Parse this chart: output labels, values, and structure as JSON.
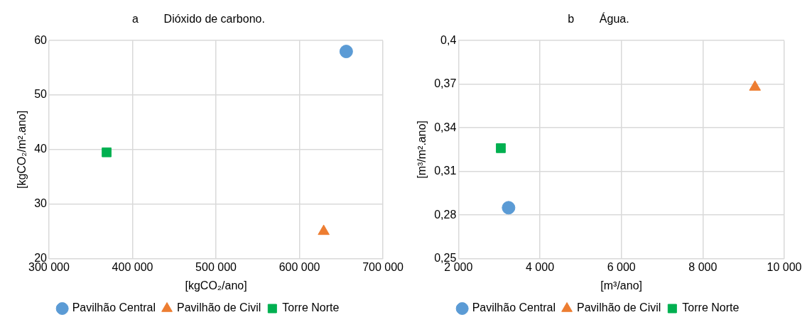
{
  "chart_data": [
    {
      "type": "scatter",
      "title": "a        Dióxido de carbono.",
      "xlabel": "[kgCO₂/ano]",
      "ylabel": "[kgCO₂/m².ano]",
      "series": [
        {
          "name": "Pavilhão Central",
          "color": "#5b9bd5",
          "marker": "circle",
          "x": [
            656000
          ],
          "values": [
            58
          ]
        },
        {
          "name": "Pavilhão de Civil",
          "color": "#ed7d31",
          "marker": "triangle",
          "x": [
            629000
          ],
          "values": [
            25
          ]
        },
        {
          "name": "Torre Norte",
          "color": "#00b050",
          "marker": "square",
          "x": [
            369000
          ],
          "values": [
            39.5
          ]
        }
      ],
      "xlim": [
        300000,
        700000
      ],
      "xticks": [
        {
          "value": 300000,
          "label": "300 000"
        },
        {
          "value": 400000,
          "label": "400 000"
        },
        {
          "value": 500000,
          "label": "500 000"
        },
        {
          "value": 600000,
          "label": "600 000"
        },
        {
          "value": 700000,
          "label": "700 000"
        }
      ],
      "ylim": [
        20,
        60
      ],
      "yticks": [
        20,
        30,
        40,
        50,
        60
      ],
      "grid": true,
      "legend": "bottom"
    },
    {
      "type": "scatter",
      "title": "b        Água.",
      "xlabel": "[m³/ano]",
      "ylabel": "[m³/m².ano]",
      "series": [
        {
          "name": "Pavilhão Central",
          "color": "#5b9bd5",
          "marker": "circle",
          "x": [
            3230
          ],
          "values": [
            0.285
          ]
        },
        {
          "name": "Pavilhão de Civil",
          "color": "#ed7d31",
          "marker": "triangle",
          "x": [
            9280
          ],
          "values": [
            0.368
          ]
        },
        {
          "name": "Torre Norte",
          "color": "#00b050",
          "marker": "square",
          "x": [
            3040
          ],
          "values": [
            0.326
          ]
        }
      ],
      "xlim": [
        2000,
        10000
      ],
      "xticks": [
        {
          "value": 2000,
          "label": "2 000"
        },
        {
          "value": 4000,
          "label": "4 000"
        },
        {
          "value": 6000,
          "label": "6 000"
        },
        {
          "value": 8000,
          "label": "8 000"
        },
        {
          "value": 10000,
          "label": "10 000"
        }
      ],
      "ylim": [
        0.25,
        0.4
      ],
      "yticks": [
        {
          "value": 0.25,
          "label": "0,25"
        },
        {
          "value": 0.28,
          "label": "0,28"
        },
        {
          "value": 0.31,
          "label": "0,31"
        },
        {
          "value": 0.34,
          "label": "0,34"
        },
        {
          "value": 0.37,
          "label": "0,37"
        },
        {
          "value": 0.4,
          "label": "0,4"
        }
      ],
      "grid": true,
      "legend": "bottom"
    }
  ]
}
